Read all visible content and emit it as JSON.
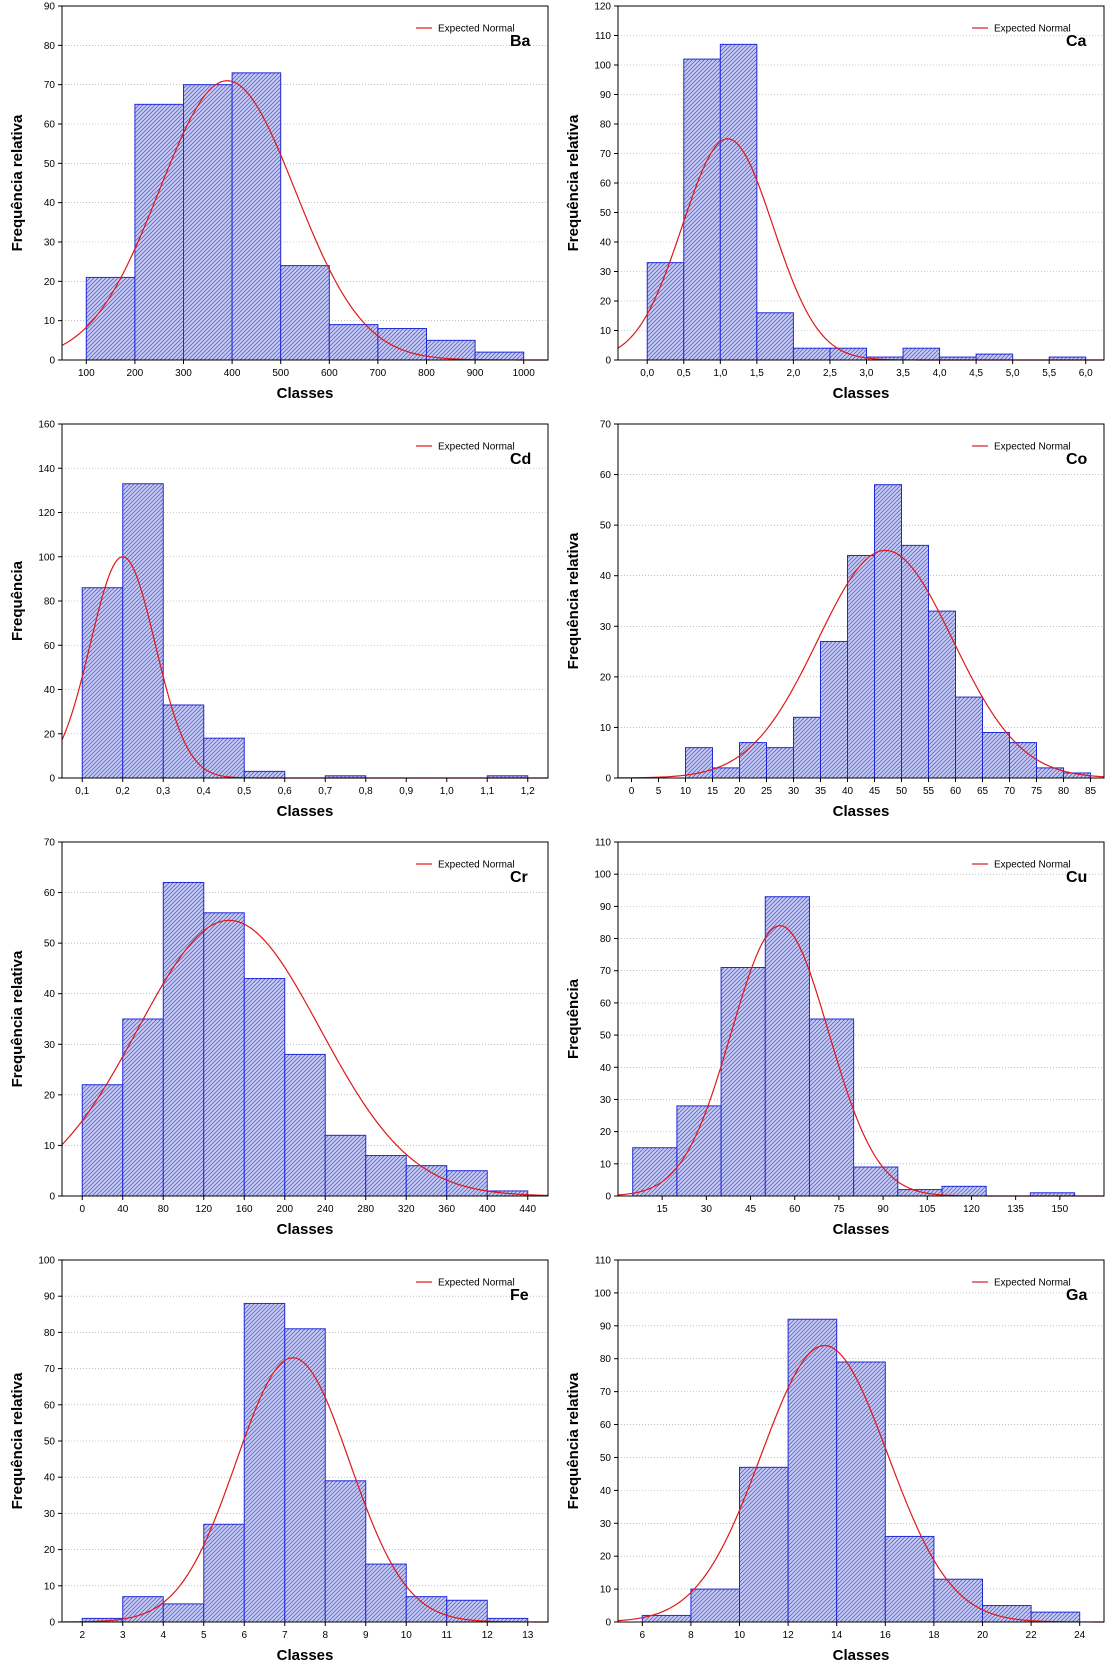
{
  "legend_label": "Expected Normal",
  "colors": {
    "bar_stroke": "#1f2bd6",
    "bar_fill": "#c9ccf0",
    "hatch": "#5560e0",
    "curve": "#e01818",
    "grid": "#9a9a9a"
  },
  "chart_data": [
    {
      "type": "bar",
      "title": "Ba",
      "xlabel": "Classes",
      "ylabel": "Frequência relativa",
      "bins": [
        [
          100,
          200,
          21
        ],
        [
          200,
          300,
          65
        ],
        [
          300,
          400,
          70
        ],
        [
          400,
          500,
          73
        ],
        [
          500,
          600,
          24
        ],
        [
          600,
          700,
          9
        ],
        [
          700,
          800,
          8
        ],
        [
          800,
          900,
          5
        ],
        [
          900,
          1000,
          2
        ]
      ],
      "xticks": [
        100,
        200,
        300,
        400,
        500,
        600,
        700,
        800,
        900,
        1000
      ],
      "xtick_labels": [
        "100",
        "200",
        "300",
        "400",
        "500",
        "600",
        "700",
        "800",
        "900",
        "1000"
      ],
      "xlim": [
        50,
        1050
      ],
      "ylim": [
        0,
        90
      ],
      "yticks": [
        0,
        10,
        20,
        30,
        40,
        50,
        60,
        70,
        80,
        90
      ],
      "normal": {
        "mean": 390,
        "sd": 140,
        "peak": 71
      }
    },
    {
      "type": "bar",
      "title": "Ca",
      "xlabel": "Classes",
      "ylabel": "Frequência relativa",
      "bins": [
        [
          0,
          0.5,
          33
        ],
        [
          0.5,
          1.0,
          102
        ],
        [
          1.0,
          1.5,
          107
        ],
        [
          1.5,
          2.0,
          16
        ],
        [
          2.0,
          2.5,
          4
        ],
        [
          2.5,
          3.0,
          4
        ],
        [
          3.0,
          3.5,
          1
        ],
        [
          3.5,
          4.0,
          4
        ],
        [
          4.0,
          4.5,
          1
        ],
        [
          4.5,
          5.0,
          2
        ],
        [
          5.0,
          5.5,
          0
        ],
        [
          5.5,
          6.0,
          1
        ]
      ],
      "xticks": [
        0,
        0.5,
        1.0,
        1.5,
        2.0,
        2.5,
        3.0,
        3.5,
        4.0,
        4.5,
        5.0,
        5.5,
        6.0
      ],
      "xtick_labels": [
        "0,0",
        "0,5",
        "1,0",
        "1,5",
        "2,0",
        "2,5",
        "3,0",
        "3,5",
        "4,0",
        "4,5",
        "5,0",
        "5,5",
        "6,0"
      ],
      "xlim": [
        -0.4,
        6.25
      ],
      "ylim": [
        0,
        120
      ],
      "yticks": [
        0,
        10,
        20,
        30,
        40,
        50,
        60,
        70,
        80,
        90,
        100,
        110,
        120
      ],
      "normal": {
        "mean": 1.1,
        "sd": 0.62,
        "peak": 75
      }
    },
    {
      "type": "bar",
      "title": "Cd",
      "xlabel": "Classes",
      "ylabel": "Frequência",
      "bins": [
        [
          0.1,
          0.2,
          86
        ],
        [
          0.2,
          0.3,
          133
        ],
        [
          0.3,
          0.4,
          33
        ],
        [
          0.4,
          0.5,
          18
        ],
        [
          0.5,
          0.6,
          3
        ],
        [
          0.6,
          0.7,
          0
        ],
        [
          0.7,
          0.8,
          1
        ],
        [
          0.8,
          0.9,
          0
        ],
        [
          0.9,
          1.0,
          0
        ],
        [
          1.0,
          1.1,
          0
        ],
        [
          1.1,
          1.2,
          1
        ]
      ],
      "xticks": [
        0.1,
        0.2,
        0.3,
        0.4,
        0.5,
        0.6,
        0.7,
        0.8,
        0.9,
        1.0,
        1.1,
        1.2
      ],
      "xtick_labels": [
        "0,1",
        "0,2",
        "0,3",
        "0,4",
        "0,5",
        "0,6",
        "0,7",
        "0,8",
        "0,9",
        "1,0",
        "1,1",
        "1,2"
      ],
      "xlim": [
        0.05,
        1.25
      ],
      "ylim": [
        0,
        160
      ],
      "yticks": [
        0,
        20,
        40,
        60,
        80,
        100,
        120,
        140,
        160
      ],
      "normal": {
        "mean": 0.2,
        "sd": 0.08,
        "peak": 100
      }
    },
    {
      "type": "bar",
      "title": "Co",
      "xlabel": "Classes",
      "ylabel": "Frequência relativa",
      "bins": [
        [
          10,
          15,
          6
        ],
        [
          15,
          20,
          2
        ],
        [
          20,
          25,
          7
        ],
        [
          25,
          30,
          6
        ],
        [
          30,
          35,
          12
        ],
        [
          35,
          40,
          27
        ],
        [
          40,
          45,
          44
        ],
        [
          45,
          50,
          58
        ],
        [
          50,
          55,
          46
        ],
        [
          55,
          60,
          33
        ],
        [
          60,
          65,
          16
        ],
        [
          65,
          70,
          9
        ],
        [
          70,
          75,
          7
        ],
        [
          75,
          80,
          2
        ],
        [
          80,
          85,
          1
        ]
      ],
      "xticks": [
        0,
        5,
        10,
        15,
        20,
        25,
        30,
        35,
        40,
        45,
        50,
        55,
        60,
        65,
        70,
        75,
        80,
        85
      ],
      "xtick_labels": [
        "0",
        "5",
        "10",
        "15",
        "20",
        "25",
        "30",
        "35",
        "40",
        "45",
        "50",
        "55",
        "60",
        "65",
        "70",
        "75",
        "80",
        "85"
      ],
      "xlim": [
        -2.5,
        87.5
      ],
      "ylim": [
        0,
        70
      ],
      "yticks": [
        0,
        10,
        20,
        30,
        40,
        50,
        60,
        70
      ],
      "normal": {
        "mean": 47,
        "sd": 12.5,
        "peak": 45
      }
    },
    {
      "type": "bar",
      "title": "Cr",
      "xlabel": "Classes",
      "ylabel": "Frequência relativa",
      "bins": [
        [
          0,
          40,
          22
        ],
        [
          40,
          80,
          35
        ],
        [
          80,
          120,
          62
        ],
        [
          120,
          160,
          56
        ],
        [
          160,
          200,
          43
        ],
        [
          200,
          240,
          28
        ],
        [
          240,
          280,
          12
        ],
        [
          280,
          320,
          8
        ],
        [
          320,
          360,
          6
        ],
        [
          360,
          400,
          5
        ],
        [
          400,
          440,
          1
        ]
      ],
      "xticks": [
        0,
        40,
        80,
        120,
        160,
        200,
        240,
        280,
        320,
        360,
        400,
        440
      ],
      "xtick_labels": [
        "0",
        "40",
        "80",
        "120",
        "160",
        "200",
        "240",
        "280",
        "320",
        "360",
        "400",
        "440"
      ],
      "xlim": [
        -20,
        460
      ],
      "ylim": [
        0,
        70
      ],
      "yticks": [
        0,
        10,
        20,
        30,
        40,
        50,
        60,
        70
      ],
      "normal": {
        "mean": 145,
        "sd": 90,
        "peak": 54.5
      }
    },
    {
      "type": "bar",
      "title": "Cu",
      "xlabel": "Classes",
      "ylabel": "Frequência",
      "bins": [
        [
          5,
          20,
          15
        ],
        [
          20,
          35,
          28
        ],
        [
          35,
          50,
          71
        ],
        [
          50,
          65,
          93
        ],
        [
          65,
          80,
          55
        ],
        [
          80,
          95,
          9
        ],
        [
          95,
          110,
          2
        ],
        [
          110,
          125,
          3
        ],
        [
          125,
          140,
          0
        ],
        [
          140,
          155,
          1
        ]
      ],
      "xticks": [
        15,
        30,
        45,
        60,
        75,
        90,
        105,
        120,
        135,
        150
      ],
      "xtick_labels": [
        "15",
        "30",
        "45",
        "60",
        "75",
        "90",
        "105",
        "120",
        "135",
        "150"
      ],
      "xlim": [
        0,
        165
      ],
      "ylim": [
        0,
        110
      ],
      "yticks": [
        0,
        10,
        20,
        30,
        40,
        50,
        60,
        70,
        80,
        90,
        100,
        110
      ],
      "normal": {
        "mean": 55,
        "sd": 16.5,
        "peak": 84
      }
    },
    {
      "type": "bar",
      "title": "Fe",
      "xlabel": "Classes",
      "ylabel": "Frequência relativa",
      "bins": [
        [
          2,
          3,
          1
        ],
        [
          3,
          4,
          7
        ],
        [
          4,
          5,
          5
        ],
        [
          5,
          6,
          27
        ],
        [
          6,
          7,
          88
        ],
        [
          7,
          8,
          81
        ],
        [
          8,
          9,
          39
        ],
        [
          9,
          10,
          16
        ],
        [
          10,
          11,
          7
        ],
        [
          11,
          12,
          6
        ],
        [
          12,
          13,
          1
        ]
      ],
      "xticks": [
        2,
        3,
        4,
        5,
        6,
        7,
        8,
        9,
        10,
        11,
        12,
        13
      ],
      "xtick_labels": [
        "2",
        "3",
        "4",
        "5",
        "6",
        "7",
        "8",
        "9",
        "10",
        "11",
        "12",
        "13"
      ],
      "xlim": [
        1.5,
        13.5
      ],
      "ylim": [
        0,
        100
      ],
      "yticks": [
        0,
        10,
        20,
        30,
        40,
        50,
        60,
        70,
        80,
        90,
        100
      ],
      "normal": {
        "mean": 7.2,
        "sd": 1.4,
        "peak": 73
      }
    },
    {
      "type": "bar",
      "title": "Ga",
      "xlabel": "Classes",
      "ylabel": "Frequência relativa",
      "bins": [
        [
          6,
          8,
          2
        ],
        [
          8,
          10,
          10
        ],
        [
          10,
          12,
          47
        ],
        [
          12,
          14,
          92
        ],
        [
          14,
          16,
          79
        ],
        [
          16,
          18,
          26
        ],
        [
          18,
          20,
          13
        ],
        [
          20,
          22,
          5
        ],
        [
          22,
          24,
          3
        ]
      ],
      "xticks": [
        6,
        8,
        10,
        12,
        14,
        16,
        18,
        20,
        22,
        24
      ],
      "xtick_labels": [
        "6",
        "8",
        "10",
        "12",
        "14",
        "16",
        "18",
        "20",
        "22",
        "24"
      ],
      "xlim": [
        5,
        25
      ],
      "ylim": [
        0,
        110
      ],
      "yticks": [
        0,
        10,
        20,
        30,
        40,
        50,
        60,
        70,
        80,
        90,
        100,
        110
      ],
      "normal": {
        "mean": 13.5,
        "sd": 2.6,
        "peak": 84
      }
    }
  ]
}
